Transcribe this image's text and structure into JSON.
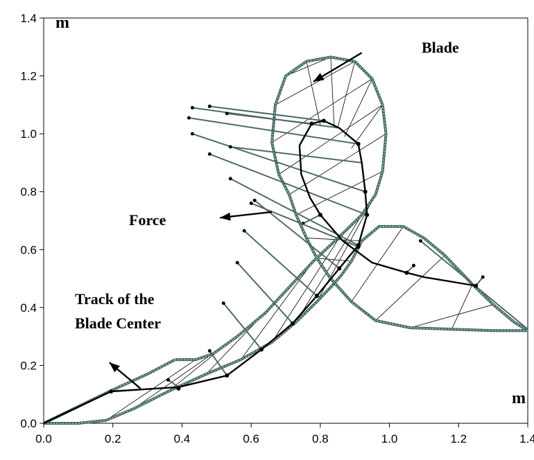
{
  "chart_data": {
    "type": "line",
    "title": "",
    "xlabel": "",
    "ylabel": "",
    "units": {
      "x": "m",
      "y": "m"
    },
    "xlim": [
      0.0,
      1.4
    ],
    "ylim": [
      0.0,
      1.4
    ],
    "xticks": [
      "0.0",
      "0.2",
      "0.4",
      "0.6",
      "0.8",
      "1.0",
      "1.2",
      "1.4"
    ],
    "yticks": [
      "0.0",
      "0.2",
      "0.4",
      "0.6",
      "0.8",
      "1.0",
      "1.2",
      "1.4"
    ],
    "grid": false,
    "annotations": [
      "Blade",
      "Force",
      "Track of the",
      "Blade Center"
    ],
    "annotation_arrows": [
      {
        "label": "Blade",
        "from": [
          0.92,
          1.28
        ],
        "to": [
          0.78,
          1.18
        ]
      },
      {
        "label": "Force",
        "from": [
          0.66,
          0.73
        ],
        "to": [
          0.51,
          0.71
        ]
      },
      {
        "label": "Track of the Blade Center",
        "from": [
          0.28,
          0.12
        ],
        "to": [
          0.19,
          0.21
        ]
      }
    ],
    "colors": {
      "track": "#000000",
      "blade": "#7fa6a0",
      "blade_fill": "#3c5c58",
      "force": "#4d6b66",
      "chord": "#000000"
    },
    "series": [
      {
        "name": "Track of the Blade Center",
        "points": [
          [
            0.0,
            0.0
          ],
          [
            0.195,
            0.11
          ],
          [
            0.39,
            0.125
          ],
          [
            0.53,
            0.165
          ],
          [
            0.63,
            0.255
          ],
          [
            0.72,
            0.345
          ],
          [
            0.79,
            0.44
          ],
          [
            0.855,
            0.535
          ],
          [
            0.91,
            0.615
          ],
          [
            0.935,
            0.72
          ],
          [
            0.93,
            0.8
          ],
          [
            0.92,
            0.9
          ],
          [
            0.91,
            0.965
          ],
          [
            0.855,
            1.02
          ],
          [
            0.81,
            1.045
          ],
          [
            0.775,
            1.035
          ],
          [
            0.74,
            0.96
          ],
          [
            0.745,
            0.86
          ],
          [
            0.77,
            0.78
          ],
          [
            0.8,
            0.72
          ],
          [
            0.865,
            0.63
          ],
          [
            0.95,
            0.555
          ],
          [
            1.05,
            0.52
          ],
          [
            1.1,
            0.505
          ],
          [
            1.25,
            0.475
          ]
        ],
        "markers": [
          [
            0.195,
            0.11
          ],
          [
            0.39,
            0.12
          ],
          [
            0.53,
            0.165
          ],
          [
            0.63,
            0.255
          ],
          [
            0.72,
            0.345
          ],
          [
            0.79,
            0.44
          ],
          [
            0.855,
            0.535
          ],
          [
            0.91,
            0.615
          ],
          [
            0.935,
            0.72
          ],
          [
            0.93,
            0.8
          ],
          [
            0.91,
            0.965
          ],
          [
            0.81,
            1.045
          ],
          [
            0.775,
            1.035
          ],
          [
            0.8,
            0.72
          ],
          [
            0.91,
            0.61
          ],
          [
            1.05,
            0.52
          ],
          [
            1.25,
            0.475
          ]
        ]
      },
      {
        "name": "Blade",
        "lower_edge": [
          [
            0.0,
            0.0
          ],
          [
            0.1,
            0.0
          ],
          [
            0.18,
            0.01
          ],
          [
            0.26,
            0.05
          ],
          [
            0.36,
            0.11
          ],
          [
            0.47,
            0.17
          ],
          [
            0.57,
            0.22
          ],
          [
            0.66,
            0.28
          ],
          [
            0.73,
            0.35
          ],
          [
            0.79,
            0.42
          ],
          [
            0.83,
            0.47
          ],
          [
            0.86,
            0.51
          ],
          [
            0.89,
            0.56
          ],
          [
            0.92,
            0.63
          ],
          [
            0.97,
            0.68
          ],
          [
            1.04,
            0.68
          ],
          [
            1.1,
            0.64
          ],
          [
            1.16,
            0.58
          ],
          [
            1.24,
            0.48
          ],
          [
            1.3,
            0.41
          ],
          [
            1.36,
            0.35
          ],
          [
            1.4,
            0.32
          ]
        ],
        "upper_edge": [
          [
            1.4,
            0.32
          ],
          [
            1.3,
            0.32
          ],
          [
            1.18,
            0.325
          ],
          [
            1.06,
            0.33
          ],
          [
            0.96,
            0.355
          ],
          [
            0.89,
            0.42
          ],
          [
            0.83,
            0.5
          ],
          [
            0.79,
            0.57
          ],
          [
            0.76,
            0.64
          ],
          [
            0.73,
            0.72
          ],
          [
            0.71,
            0.79
          ],
          [
            0.68,
            0.86
          ],
          [
            0.66,
            0.97
          ],
          [
            0.67,
            1.1
          ],
          [
            0.7,
            1.2
          ],
          [
            0.76,
            1.25
          ],
          [
            0.83,
            1.265
          ],
          [
            0.9,
            1.25
          ],
          [
            0.95,
            1.19
          ],
          [
            0.98,
            1.1
          ],
          [
            0.99,
            1.0
          ],
          [
            0.98,
            0.87
          ],
          [
            0.96,
            0.79
          ],
          [
            0.92,
            0.72
          ],
          [
            0.86,
            0.65
          ],
          [
            0.78,
            0.56
          ],
          [
            0.71,
            0.47
          ],
          [
            0.64,
            0.38
          ],
          [
            0.56,
            0.3
          ],
          [
            0.49,
            0.24
          ],
          [
            0.44,
            0.22
          ],
          [
            0.38,
            0.22
          ]
        ],
        "leading_edge": [
          [
            0.38,
            0.22
          ],
          [
            0.3,
            0.17
          ],
          [
            0.19,
            0.11
          ],
          [
            0.0,
            0.0
          ]
        ]
      }
    ],
    "force_vectors": [
      {
        "from": [
          0.39,
          0.125
        ],
        "to": [
          0.36,
          0.15
        ]
      },
      {
        "from": [
          0.53,
          0.165
        ],
        "to": [
          0.48,
          0.25
        ]
      },
      {
        "from": [
          0.63,
          0.255
        ],
        "to": [
          0.52,
          0.415
        ]
      },
      {
        "from": [
          0.72,
          0.345
        ],
        "to": [
          0.56,
          0.555
        ]
      },
      {
        "from": [
          0.79,
          0.44
        ],
        "to": [
          0.58,
          0.665
        ]
      },
      {
        "from": [
          0.855,
          0.535
        ],
        "to": [
          0.61,
          0.77
        ]
      },
      {
        "from": [
          0.91,
          0.615
        ],
        "to": [
          0.54,
          0.845
        ]
      },
      {
        "from": [
          0.935,
          0.72
        ],
        "to": [
          0.48,
          0.93
        ]
      },
      {
        "from": [
          0.93,
          0.8
        ],
        "to": [
          0.43,
          1.0
        ]
      },
      {
        "from": [
          0.92,
          0.9
        ],
        "to": [
          0.54,
          0.955
        ]
      },
      {
        "from": [
          0.91,
          0.965
        ],
        "to": [
          0.42,
          1.055
        ]
      },
      {
        "from": [
          0.855,
          1.02
        ],
        "to": [
          0.43,
          1.09
        ]
      },
      {
        "from": [
          0.81,
          1.045
        ],
        "to": [
          0.48,
          1.095
        ]
      },
      {
        "from": [
          0.775,
          1.035
        ],
        "to": [
          0.53,
          1.07
        ]
      },
      {
        "from": [
          0.8,
          0.72
        ],
        "to": [
          0.75,
          0.69
        ]
      },
      {
        "from": [
          0.91,
          0.61
        ],
        "to": [
          0.6,
          0.76
        ]
      },
      {
        "from": [
          1.05,
          0.52
        ],
        "to": [
          1.07,
          0.545
        ]
      },
      {
        "from": [
          1.25,
          0.475
        ],
        "to": [
          1.27,
          0.505
        ]
      },
      {
        "from": [
          1.4,
          0.325
        ],
        "to": [
          1.09,
          0.63
        ]
      }
    ],
    "chords": [
      [
        [
          0.38,
          0.22
        ],
        [
          0.0,
          0.0
        ]
      ],
      [
        [
          0.44,
          0.22
        ],
        [
          0.18,
          0.01
        ]
      ],
      [
        [
          0.56,
          0.3
        ],
        [
          0.26,
          0.05
        ]
      ],
      [
        [
          0.64,
          0.38
        ],
        [
          0.36,
          0.11
        ]
      ],
      [
        [
          0.71,
          0.47
        ],
        [
          0.47,
          0.17
        ]
      ],
      [
        [
          0.78,
          0.56
        ],
        [
          0.57,
          0.22
        ]
      ],
      [
        [
          0.86,
          0.65
        ],
        [
          0.66,
          0.28
        ]
      ],
      [
        [
          0.92,
          0.72
        ],
        [
          0.73,
          0.35
        ]
      ],
      [
        [
          0.96,
          0.79
        ],
        [
          0.79,
          0.42
        ]
      ],
      [
        [
          0.98,
          0.87
        ],
        [
          0.73,
          0.72
        ]
      ],
      [
        [
          0.99,
          1.0
        ],
        [
          0.71,
          0.79
        ]
      ],
      [
        [
          0.98,
          1.1
        ],
        [
          0.68,
          0.86
        ]
      ],
      [
        [
          0.95,
          1.19
        ],
        [
          0.66,
          0.97
        ]
      ],
      [
        [
          0.9,
          1.25
        ],
        [
          0.67,
          1.1
        ]
      ],
      [
        [
          0.83,
          1.265
        ],
        [
          0.7,
          1.2
        ]
      ],
      [
        [
          0.76,
          1.25
        ],
        [
          0.7,
          1.2
        ]
      ],
      [
        [
          0.83,
          1.265
        ],
        [
          0.84,
          1.03
        ]
      ],
      [
        [
          0.76,
          1.25
        ],
        [
          0.8,
          1.03
        ]
      ],
      [
        [
          0.9,
          1.25
        ],
        [
          0.85,
          1.02
        ]
      ],
      [
        [
          0.95,
          1.19
        ],
        [
          0.87,
          0.99
        ]
      ],
      [
        [
          0.98,
          1.1
        ],
        [
          0.89,
          0.95
        ]
      ],
      [
        [
          0.89,
          0.56
        ],
        [
          0.79,
          0.57
        ]
      ],
      [
        [
          0.92,
          0.63
        ],
        [
          0.76,
          0.64
        ]
      ],
      [
        [
          1.04,
          0.68
        ],
        [
          0.89,
          0.42
        ]
      ],
      [
        [
          1.16,
          0.58
        ],
        [
          0.96,
          0.355
        ]
      ],
      [
        [
          1.3,
          0.41
        ],
        [
          1.06,
          0.33
        ]
      ],
      [
        [
          1.24,
          0.48
        ],
        [
          1.18,
          0.325
        ]
      ]
    ]
  }
}
